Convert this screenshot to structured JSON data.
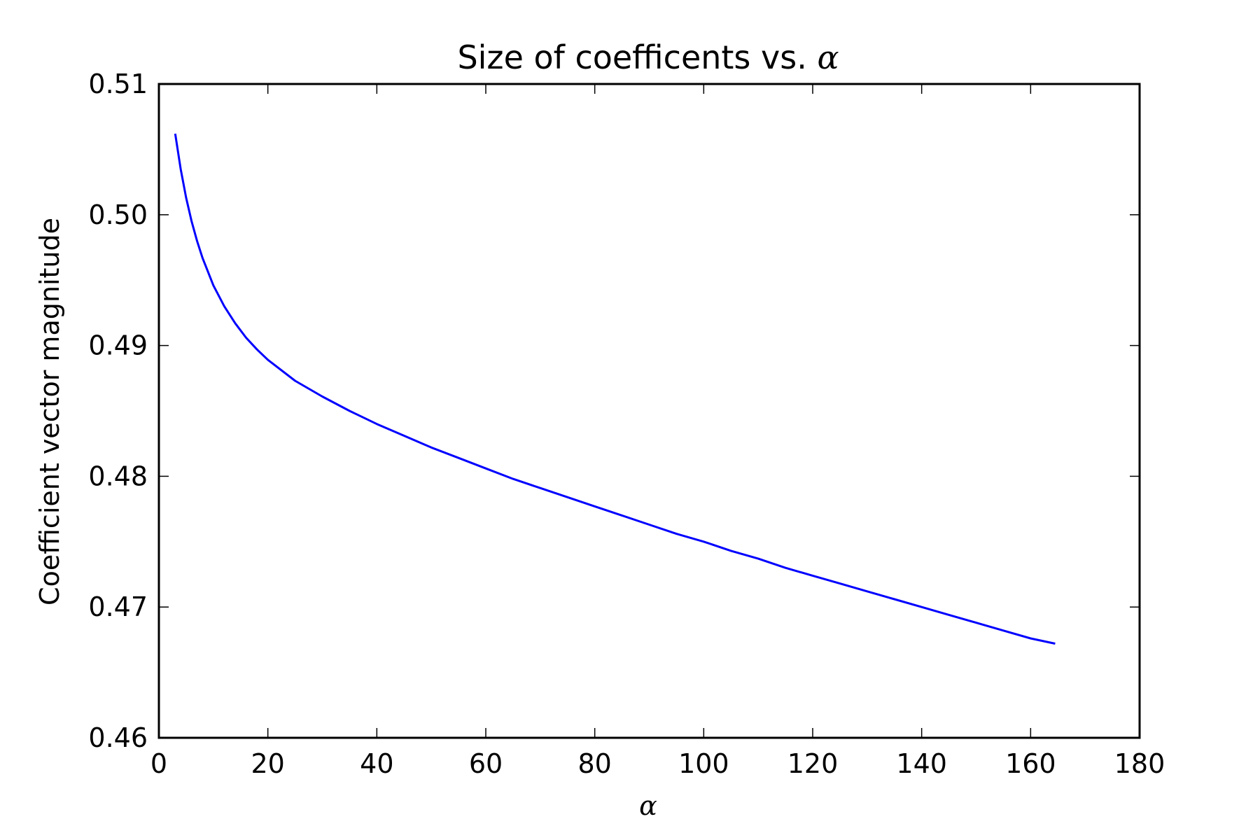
{
  "chart_data": {
    "type": "line",
    "title": "Size of coefficents vs.",
    "title_symbol": "α",
    "xlabel": "α",
    "ylabel": "Coefficient vector magnitude",
    "xlim": [
      0,
      180
    ],
    "ylim": [
      0.46,
      0.51
    ],
    "xticks": [
      0,
      20,
      40,
      60,
      80,
      100,
      120,
      140,
      160,
      180
    ],
    "xtick_labels": [
      "0",
      "20",
      "40",
      "60",
      "80",
      "100",
      "120",
      "140",
      "160",
      "180"
    ],
    "yticks": [
      0.46,
      0.47,
      0.48,
      0.49,
      0.5,
      0.51
    ],
    "ytick_labels": [
      "0.46",
      "0.47",
      "0.48",
      "0.49",
      "0.50",
      "0.51"
    ],
    "grid": false,
    "series": [
      {
        "color": "#0000ff",
        "x": [
          3,
          4,
          5,
          6,
          7,
          8,
          10,
          12,
          14,
          16,
          18,
          20,
          25,
          30,
          35,
          40,
          45,
          50,
          55,
          60,
          65,
          70,
          75,
          80,
          85,
          90,
          95,
          100,
          105,
          110,
          115,
          120,
          125,
          130,
          135,
          140,
          145,
          150,
          155,
          160,
          164.5
        ],
        "y": [
          0.5062,
          0.5035,
          0.5013,
          0.4995,
          0.498,
          0.4967,
          0.4946,
          0.493,
          0.4917,
          0.4906,
          0.4897,
          0.4889,
          0.4873,
          0.4861,
          0.485,
          0.484,
          0.4831,
          0.4822,
          0.4814,
          0.4806,
          0.4798,
          0.4791,
          0.4784,
          0.4777,
          0.477,
          0.4763,
          0.4756,
          0.475,
          0.4743,
          0.4737,
          0.473,
          0.4724,
          0.4718,
          0.4712,
          0.4706,
          0.47,
          0.4694,
          0.4688,
          0.4682,
          0.4676,
          0.4672
        ]
      }
    ]
  }
}
